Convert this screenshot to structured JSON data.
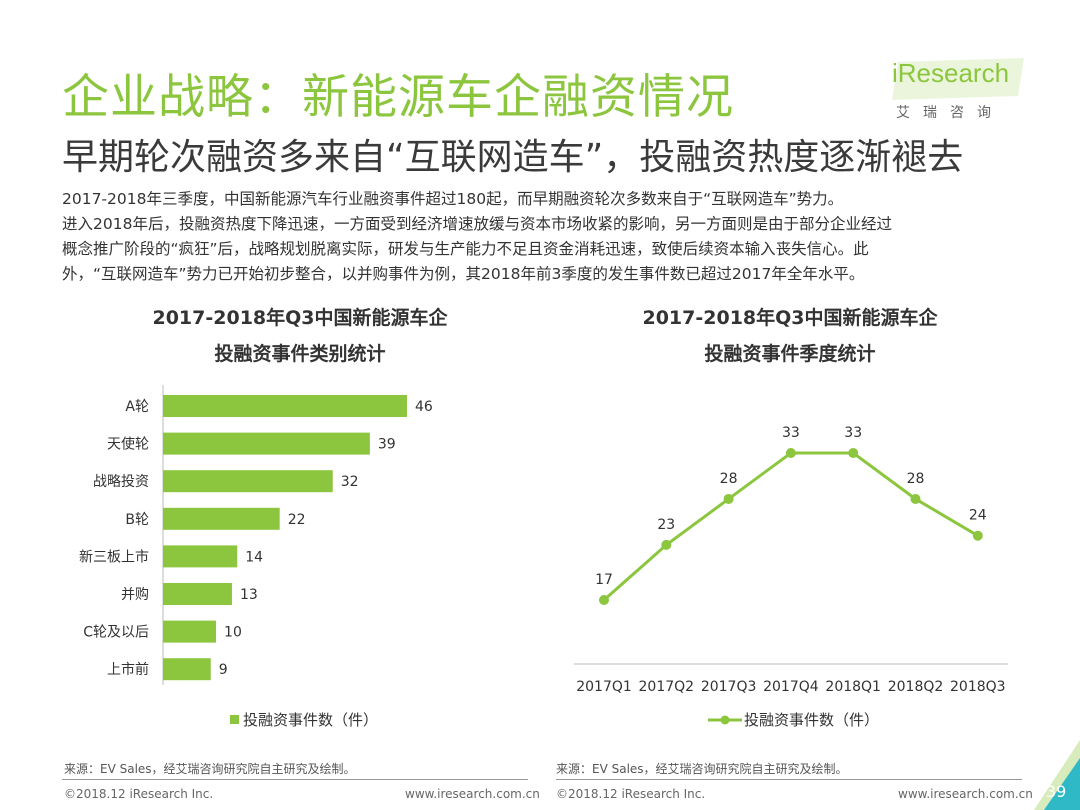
{
  "header": {
    "title": "企业战略：新能源车企融资情况",
    "subtitle": "早期轮次融资多来自“互联网造车”，投融资热度逐渐褪去"
  },
  "logo": {
    "brand": "iResearch",
    "cn": "艾瑞咨询"
  },
  "body": {
    "lines": [
      "2017-2018年三季度，中国新能源汽车行业融资事件超过180起，而早期融资轮次多数来自于“互联网造车”势力。",
      "进入2018年后，投融资热度下降迅速，一方面受到经济增速放缓与资本市场收紧的影响，另一方面则是由于部分企业经过",
      "概念推广阶段的“疯狂”后，战略规划脱离实际，研发与生产能力不足且资金消耗迅速，致使后续资本输入丧失信心。此",
      "外，“互联网造车”势力已开始初步整合，以并购事件为例，其2018年前3季度的发生事件数已超过2017年全年水平。"
    ]
  },
  "colors": {
    "accent": "#8cc63e",
    "text": "#333333"
  },
  "chart_data": [
    {
      "type": "bar",
      "orientation": "horizontal",
      "title_line1": "2017-2018年Q3中国新能源车企",
      "title_line2": "投融资事件类别统计",
      "categories": [
        "A轮",
        "天使轮",
        "战略投资",
        "B轮",
        "新三板上市",
        "并购",
        "C轮及以后",
        "上市前"
      ],
      "values": [
        46,
        39,
        32,
        22,
        14,
        13,
        10,
        9
      ],
      "legend": "投融资事件数（件）",
      "color": "#8cc63e"
    },
    {
      "type": "line",
      "title_line1": "2017-2018年Q3中国新能源车企",
      "title_line2": "投融资事件季度统计",
      "x": [
        "2017Q1",
        "2017Q2",
        "2017Q3",
        "2017Q4",
        "2018Q1",
        "2018Q2",
        "2018Q3"
      ],
      "values": [
        17,
        23,
        28,
        33,
        33,
        28,
        24
      ],
      "legend": "投融资事件数（件）",
      "color": "#8cc63e"
    }
  ],
  "footer": {
    "source_left": "来源：EV Sales，经艾瑞咨询研究院自主研究及绘制。",
    "source_right": "来源：EV Sales，经艾瑞咨询研究院自主研究及绘制。",
    "copyright_left": "©2018.12 iResearch Inc.",
    "url_left": "www.iresearch.com.cn",
    "copyright_right": "©2018.12 iResearch Inc.",
    "url_right": "www.iresearch.com.cn",
    "page_number": "39"
  }
}
